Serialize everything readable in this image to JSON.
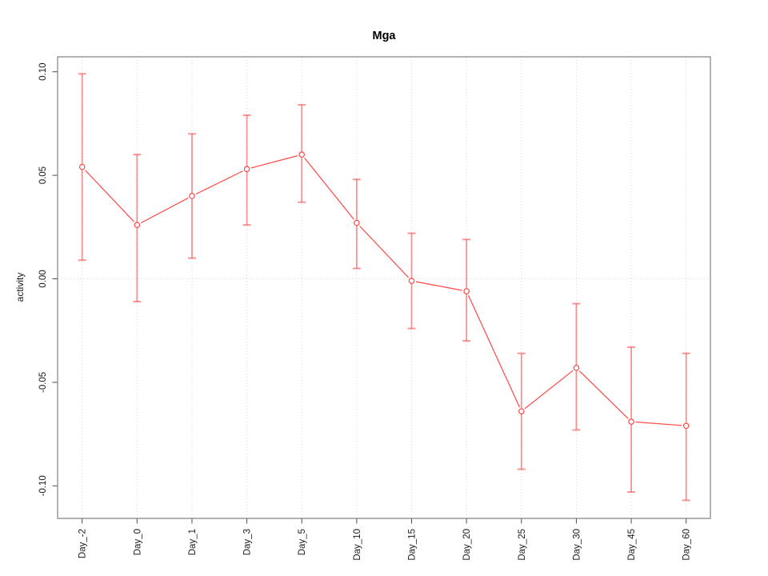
{
  "chart_data": {
    "type": "line",
    "title": "Mga",
    "xlabel": "",
    "ylabel": "activity",
    "legend": "none",
    "grid": "dotted vertical gridline at every category; dotted horizontal line at y=0",
    "categories": [
      "Day_-2",
      "Day_0",
      "Day_1",
      "Day_3",
      "Day_5",
      "Day_10",
      "Day_15",
      "Day_20",
      "Day_25",
      "Day_30",
      "Day_45",
      "Day_60"
    ],
    "series": [
      {
        "name": "activity",
        "values": [
          0.054,
          0.026,
          0.04,
          0.053,
          0.06,
          0.027,
          -0.001,
          -0.006,
          -0.064,
          -0.043,
          -0.069,
          -0.071
        ],
        "error_low": [
          0.009,
          -0.011,
          0.01,
          0.026,
          0.037,
          0.005,
          -0.024,
          -0.03,
          -0.092,
          -0.073,
          -0.103,
          -0.107
        ],
        "error_high": [
          0.099,
          0.06,
          0.07,
          0.079,
          0.084,
          0.048,
          0.022,
          0.019,
          -0.036,
          -0.012,
          -0.033,
          -0.036
        ]
      }
    ],
    "y_ticks": [
      0.1,
      0.05,
      0.0,
      -0.05,
      -0.1
    ],
    "y_tick_labels": [
      "0.10",
      "0.05",
      "0.00",
      "-0.05",
      "-0.10"
    ],
    "ylim": [
      -0.116,
      0.107
    ],
    "colors": {
      "line": "#ff4747",
      "marker_stroke": "#ff4747",
      "marker_fill": "#ffffff",
      "error_bar": "rgba(242,64,64,0.55)",
      "grid": "#d6d6d6",
      "box": "#7f7f7f",
      "tick": "#4d4d4d",
      "text": "#1a1a1a",
      "background": "#ffffff"
    }
  }
}
